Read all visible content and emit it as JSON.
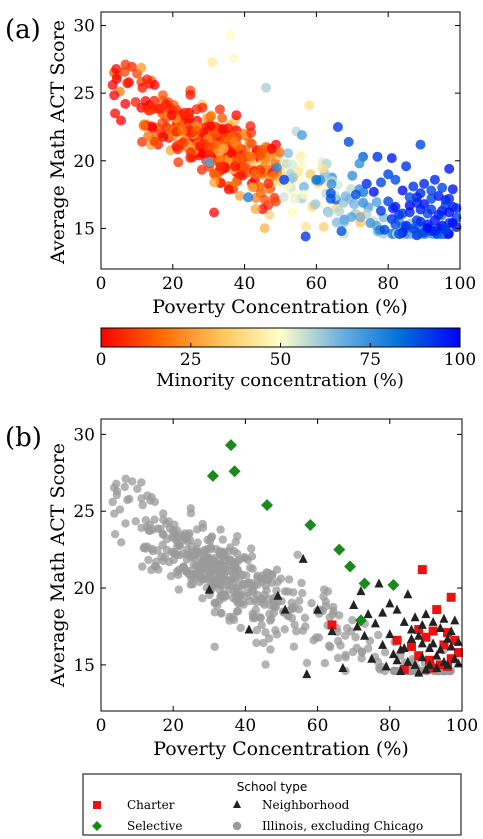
{
  "chart_data": [
    {
      "type": "scatter",
      "panel": "(a)",
      "xlabel": "Poverty Concentration (%)",
      "ylabel": "Average Math ACT Score",
      "xlim": [
        0,
        100
      ],
      "ylim": [
        12,
        31
      ],
      "xticks": [
        "0",
        "20",
        "40",
        "60",
        "80",
        "100"
      ],
      "yticks": [
        "15",
        "20",
        "25",
        "30"
      ],
      "color_encoding": "Minority concentration (%)",
      "colorbar": {
        "label": "Minority concentration (%)",
        "range": [
          0,
          100
        ],
        "ticks": [
          "0",
          "25",
          "50",
          "75",
          "100"
        ],
        "colors": [
          "#ff0000",
          "#ff6a00",
          "#ffc45a",
          "#ffffc8",
          "#6fb0e0",
          "#0070d8",
          "#0000ff"
        ]
      },
      "grid": false
    },
    {
      "type": "scatter",
      "panel": "(b)",
      "xlabel": "Poverty Concentration (%)",
      "ylabel": "Average Math ACT Score",
      "xlim": [
        0,
        100
      ],
      "ylim": [
        12,
        31
      ],
      "xticks": [
        "0",
        "20",
        "40",
        "60",
        "80",
        "100"
      ],
      "yticks": [
        "15",
        "20",
        "25",
        "30"
      ],
      "grid": false,
      "legend": {
        "title": "School type",
        "placement": "bottom",
        "entries": [
          {
            "label": "Charter",
            "color": "#ee1111",
            "marker": "square"
          },
          {
            "label": "Neighborhood",
            "color": "#222222",
            "marker": "triangle"
          },
          {
            "label": "Selective",
            "color": "#1a8a1a",
            "marker": "diamond"
          },
          {
            "label": "Illinois, excluding Chicago",
            "color": "#9a9a9a",
            "marker": "circle"
          }
        ]
      },
      "series": [
        {
          "name": "Selective",
          "points": [
            [
              31,
              27.3
            ],
            [
              36,
              29.3
            ],
            [
              37,
              27.6
            ],
            [
              46,
              25.4
            ],
            [
              58,
              24.1
            ],
            [
              66,
              22.5
            ],
            [
              69,
              21.4
            ],
            [
              73,
              20.3
            ],
            [
              81,
              20.2
            ],
            [
              72,
              17.9
            ]
          ]
        },
        {
          "name": "Charter",
          "points": [
            [
              64,
              17.6
            ],
            [
              82,
              16.6
            ],
            [
              84,
              14.7
            ],
            [
              86,
              16.2
            ],
            [
              88,
              17.3
            ],
            [
              89,
              21.2
            ],
            [
              90,
              16.8
            ],
            [
              91,
              15.3
            ],
            [
              92,
              17.2
            ],
            [
              93,
              18.6
            ],
            [
              94,
              15.0
            ],
            [
              95,
              16.3
            ],
            [
              96,
              17.1
            ],
            [
              97,
              19.4
            ],
            [
              97,
              15.4
            ],
            [
              98,
              16.6
            ],
            [
              99,
              15.8
            ],
            [
              92,
              14.8
            ],
            [
              88,
              15.6
            ],
            [
              96,
              14.9
            ]
          ]
        },
        {
          "name": "Neighborhood",
          "points": [
            [
              30,
              19.9
            ],
            [
              41,
              17.3
            ],
            [
              49,
              19.5
            ],
            [
              51,
              18.6
            ],
            [
              56,
              21.9
            ],
            [
              57,
              14.4
            ],
            [
              60,
              18.6
            ],
            [
              64,
              17.2
            ],
            [
              67,
              14.8
            ],
            [
              70,
              18.9
            ],
            [
              71,
              17.5
            ],
            [
              72,
              19.8
            ],
            [
              73,
              16.9
            ],
            [
              74,
              18.3
            ],
            [
              75,
              15.4
            ],
            [
              76,
              17.7
            ],
            [
              77,
              20.3
            ],
            [
              78,
              16.3
            ],
            [
              79,
              14.9
            ],
            [
              80,
              19.0
            ],
            [
              80,
              17.0
            ],
            [
              81,
              15.7
            ],
            [
              82,
              18.6
            ],
            [
              83,
              16.0
            ],
            [
              83,
              14.6
            ],
            [
              84,
              17.8
            ],
            [
              85,
              15.2
            ],
            [
              85,
              19.6
            ],
            [
              86,
              16.7
            ],
            [
              87,
              15.0
            ],
            [
              87,
              18.1
            ],
            [
              88,
              14.5
            ],
            [
              88,
              16.9
            ],
            [
              89,
              17.6
            ],
            [
              89,
              15.5
            ],
            [
              90,
              14.7
            ],
            [
              90,
              18.3
            ],
            [
              91,
              16.1
            ],
            [
              91,
              15.0
            ],
            [
              92,
              17.8
            ],
            [
              92,
              16.4
            ],
            [
              93,
              15.6
            ],
            [
              93,
              14.8
            ],
            [
              94,
              17.4
            ],
            [
              94,
              16.0
            ],
            [
              95,
              15.2
            ],
            [
              95,
              18.0
            ],
            [
              96,
              16.7
            ],
            [
              96,
              15.0
            ],
            [
              97,
              17.2
            ],
            [
              97,
              16.2
            ],
            [
              98,
              15.4
            ],
            [
              98,
              17.9
            ],
            [
              99,
              16.5
            ],
            [
              99,
              15.1
            ],
            [
              89,
              16.4
            ],
            [
              86,
              17.3
            ],
            [
              84,
              16.1
            ],
            [
              82,
              15.3
            ],
            [
              78,
              18.4
            ]
          ]
        },
        {
          "name": "Illinois, excluding Chicago",
          "points": "generated-cloud"
        }
      ]
    }
  ],
  "legend_title": "School type"
}
